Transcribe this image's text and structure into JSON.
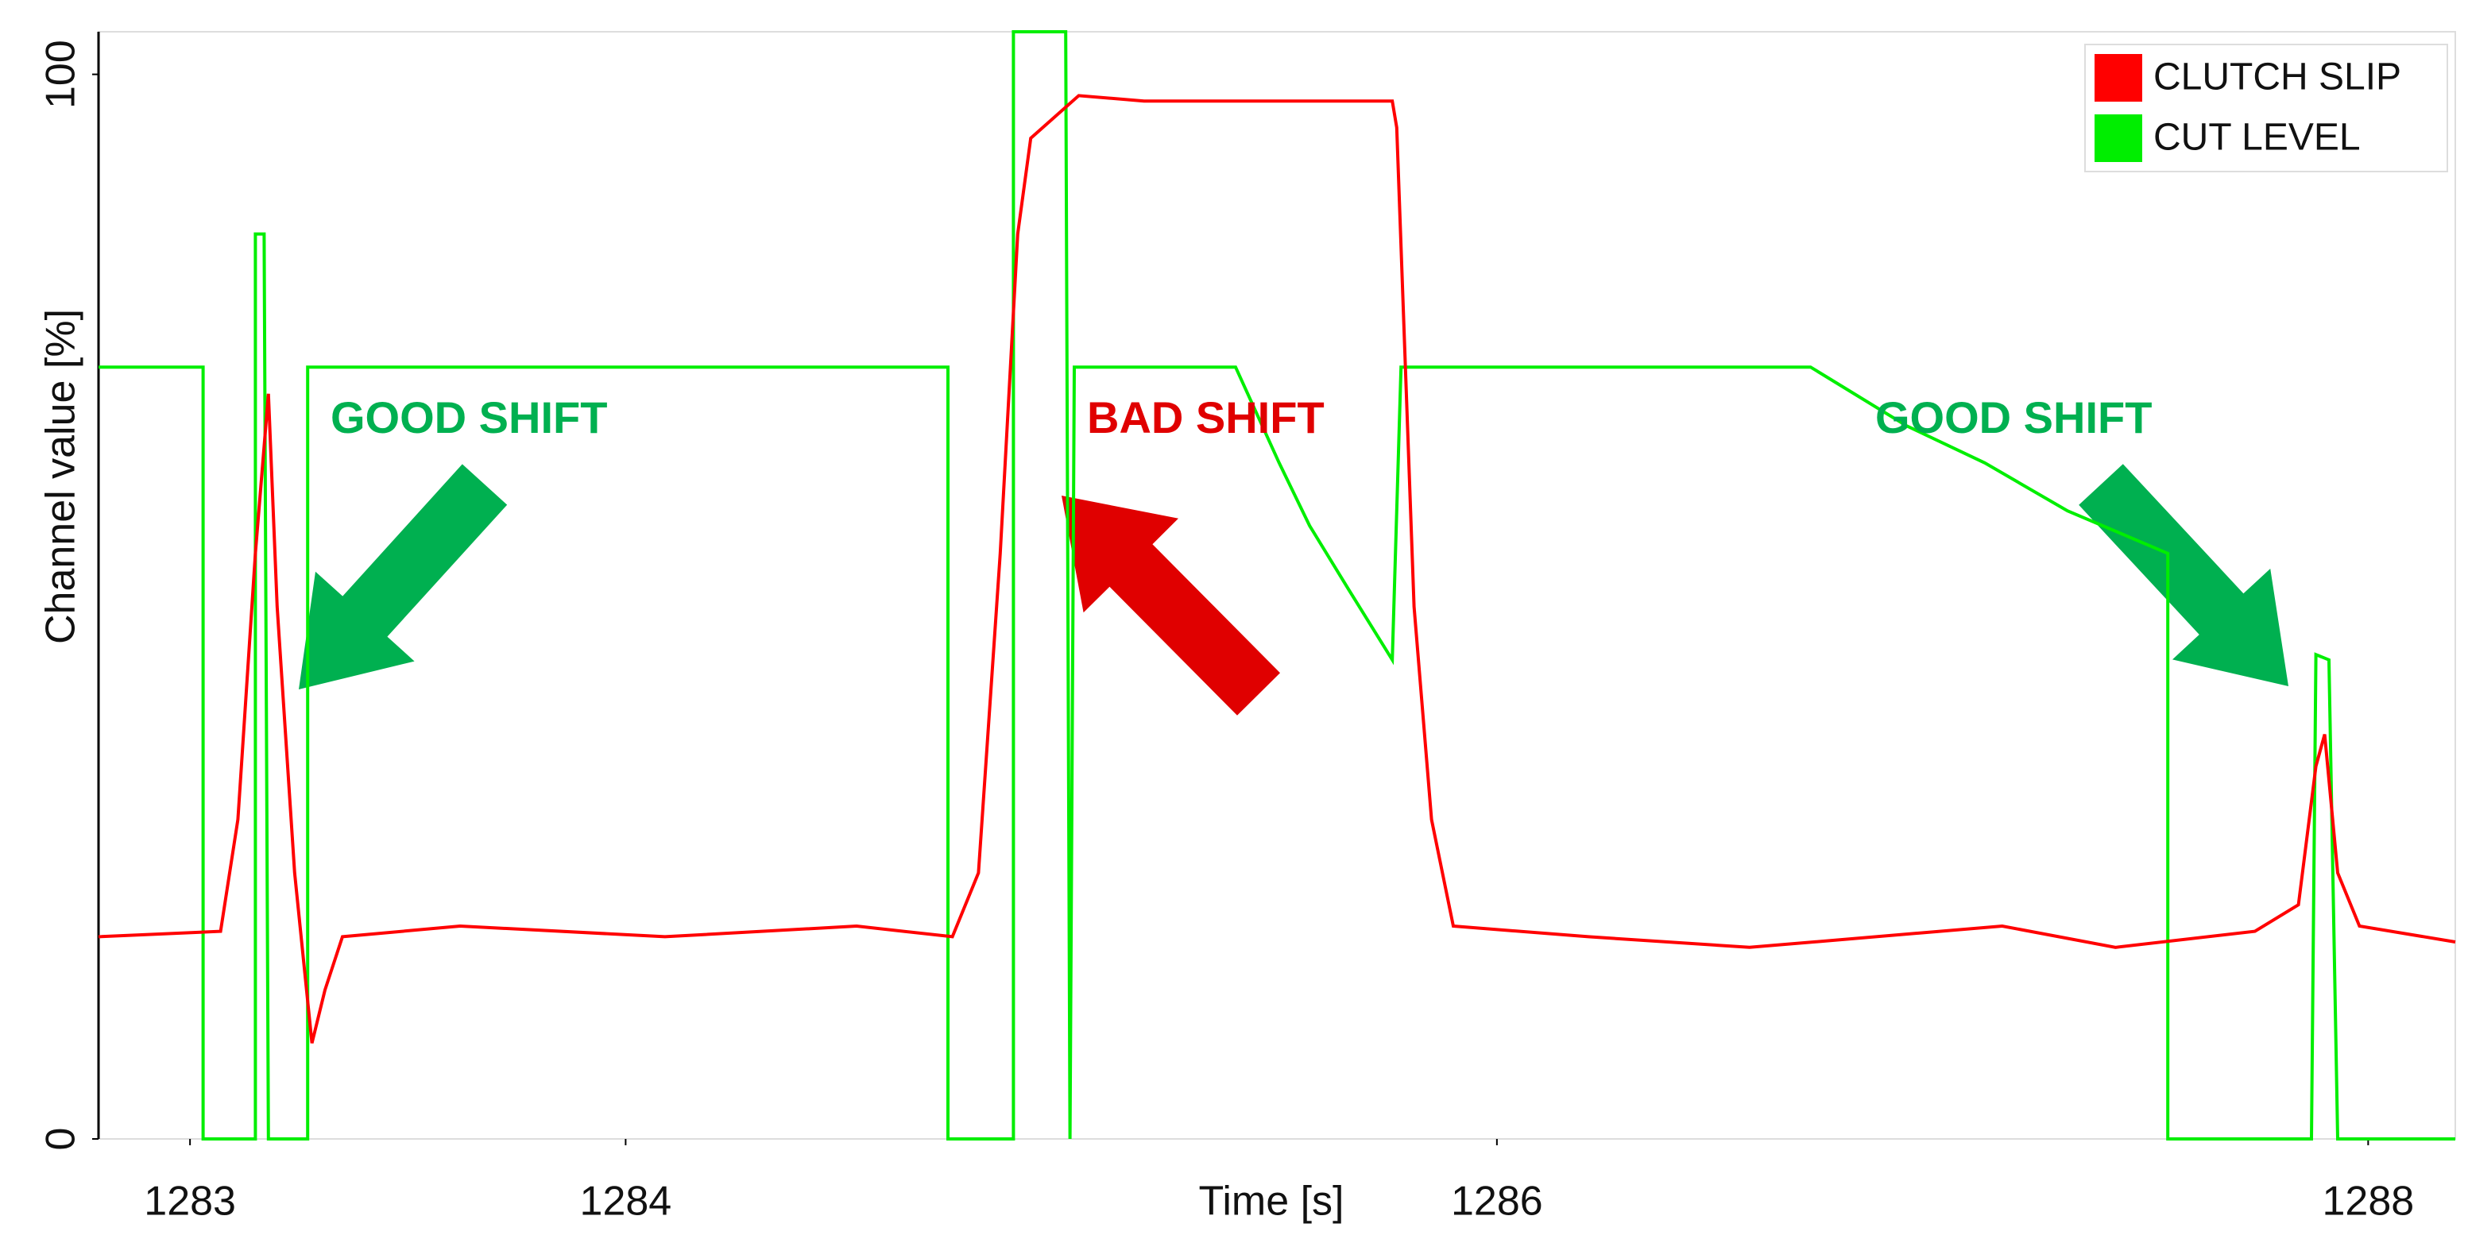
{
  "chart_data": {
    "type": "line",
    "xlabel": "Time [s]",
    "ylabel": "Channel value [%]",
    "xlim": [
      1282.79,
      1288.2
    ],
    "xticks": [
      1283,
      1284,
      1286,
      1288
    ],
    "ylim": [
      0,
      104
    ],
    "yticks": [
      0,
      100
    ],
    "legend": "top-right",
    "series": [
      {
        "name": "CLUTCH SLIP",
        "color": "#ff0000",
        "x": [
          1282.79,
          1283.07,
          1283.11,
          1283.15,
          1283.18,
          1283.2,
          1283.24,
          1283.28,
          1283.31,
          1283.35,
          1283.62,
          1284.09,
          1284.53,
          1284.75,
          1284.81,
          1284.86,
          1284.9,
          1284.93,
          1285.04,
          1285.19,
          1285.48,
          1285.76,
          1285.77,
          1285.81,
          1285.85,
          1285.9,
          1286.21,
          1286.58,
          1287.16,
          1287.42,
          1287.74,
          1287.84,
          1287.88,
          1287.9,
          1287.93,
          1287.98,
          1288.2
        ],
        "values": [
          19,
          19.5,
          30,
          55,
          70,
          50,
          25,
          9,
          14,
          19,
          20,
          19,
          20,
          19,
          25,
          55,
          85,
          94,
          98,
          97.5,
          97.5,
          97.5,
          95,
          50,
          30,
          20,
          19,
          18,
          20,
          18,
          19.5,
          22,
          35,
          38,
          25,
          20,
          18.5
        ]
      },
      {
        "name": "CUT LEVEL",
        "color": "#00ee00",
        "x": [
          1282.79,
          1283.03,
          1283.03,
          1283.15,
          1283.15,
          1283.17,
          1283.18,
          1283.27,
          1283.27,
          1284.74,
          1284.74,
          1284.89,
          1284.89,
          1285.01,
          1285.02,
          1285.03,
          1285.4,
          1285.5,
          1285.57,
          1285.66,
          1285.76,
          1285.78,
          1286.72,
          1286.8,
          1286.94,
          1287.12,
          1287.31,
          1287.54,
          1287.54,
          1287.87,
          1287.88,
          1287.91,
          1287.93,
          1288.2
        ],
        "values": [
          72.5,
          72.5,
          0,
          0,
          85,
          85,
          0,
          0,
          72.5,
          72.5,
          0,
          0,
          104,
          104,
          0,
          72.5,
          72.5,
          63.5,
          57.6,
          51.6,
          45,
          72.5,
          72.5,
          70.5,
          67,
          63.5,
          59,
          55,
          0,
          0,
          45.5,
          45,
          0,
          0
        ]
      }
    ],
    "annotations": [
      {
        "text": "GOOD SHIFT",
        "color": "#00b050"
      },
      {
        "text": "BAD SHIFT",
        "color": "#e00000"
      },
      {
        "text": "GOOD SHIFT",
        "color": "#00b050"
      }
    ]
  }
}
